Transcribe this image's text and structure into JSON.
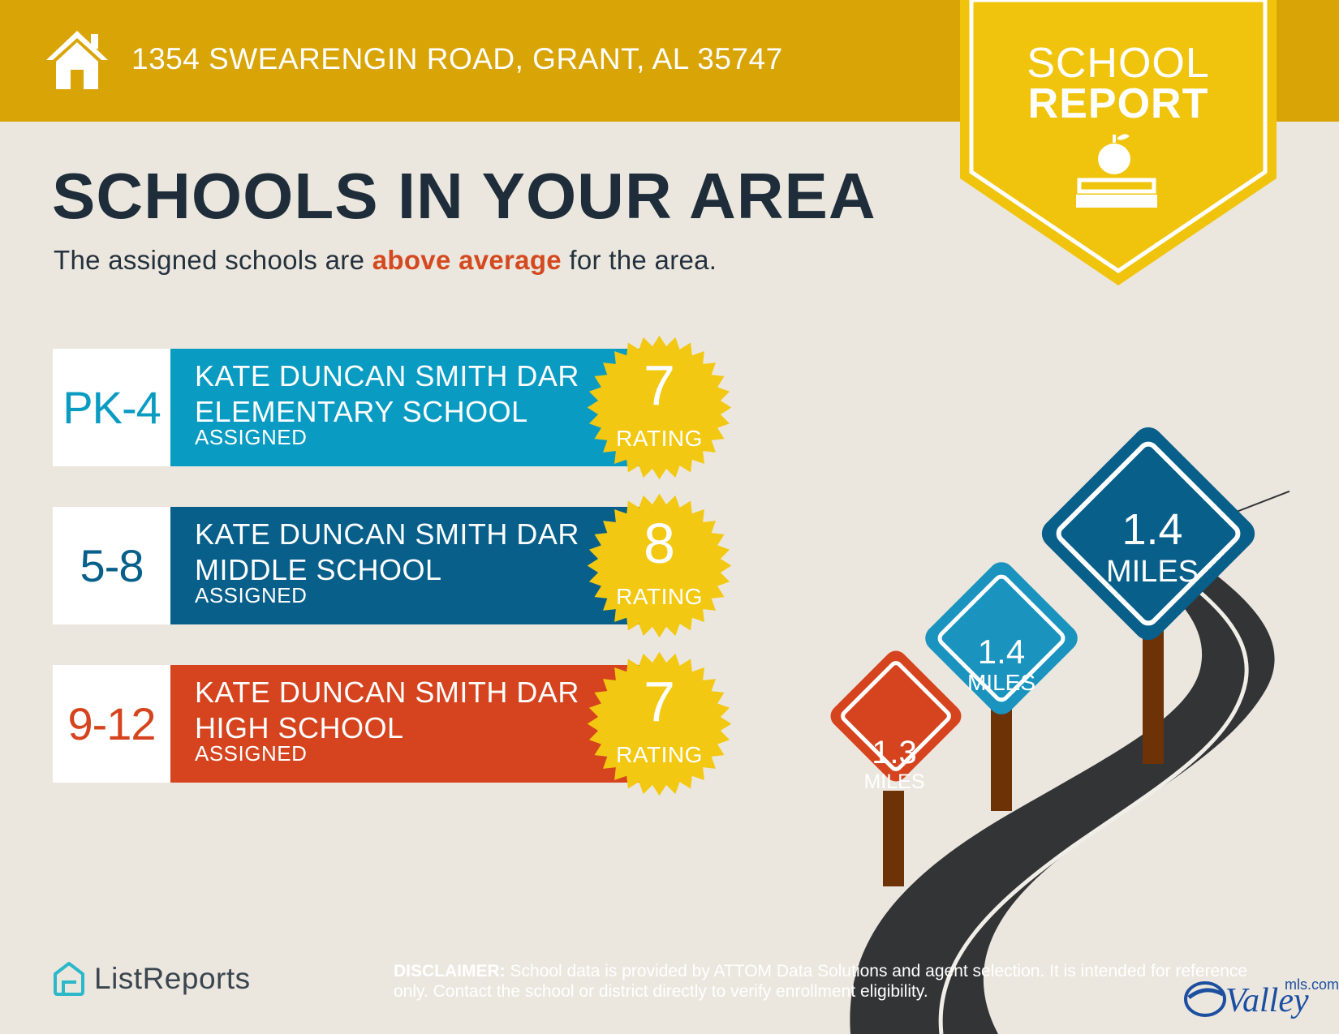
{
  "header": {
    "address": "1354 SWEARENGIN ROAD, GRANT, AL 35747",
    "badge_line1": "SCHOOL",
    "badge_line2": "REPORT"
  },
  "headline": "SCHOOLS IN YOUR AREA",
  "subhead": {
    "before": "The assigned schools are ",
    "highlight": "above average",
    "after": " for the area."
  },
  "schools": [
    {
      "grades": "PK-4",
      "name": "KATE DUNCAN SMITH DAR ELEMENTARY SCHOOL",
      "status": "ASSIGNED",
      "rating": "7",
      "rating_label": "RATING",
      "color": "#0a9bc2"
    },
    {
      "grades": "5-8",
      "name": "KATE DUNCAN SMITH DAR MIDDLE SCHOOL",
      "status": "ASSIGNED",
      "rating": "8",
      "rating_label": "RATING",
      "color": "#075f8a"
    },
    {
      "grades": "9-12",
      "name": "KATE DUNCAN SMITH DAR HIGH SCHOOL",
      "status": "ASSIGNED",
      "rating": "7",
      "rating_label": "RATING",
      "color": "#d5441e"
    }
  ],
  "distances": [
    {
      "value": "1.3",
      "unit": "MILES",
      "color": "#d5441e"
    },
    {
      "value": "1.4",
      "unit": "MILES",
      "color": "#1a94be"
    },
    {
      "value": "1.4",
      "unit": "MILES",
      "color": "#075f8a"
    }
  ],
  "footer": {
    "brand": "ListReports",
    "disclaimer_label": "DISCLAIMER:",
    "disclaimer_text": " School data is provided by ATTOM Data Solutions and agent selection. It is intended for reference only. Contact the school or district directly to verify enrollment eligibility.",
    "partner_logo": "Valley",
    "partner_suffix": "mls.com"
  },
  "colors": {
    "gold": "#d9a406",
    "badge_yellow": "#f0c40d",
    "seal_yellow": "#f2c812",
    "navy_text": "#1f2d3a",
    "accent_red": "#d4491f"
  },
  "icons": [
    "home-icon",
    "apple-books-icon",
    "listreports-logo-icon",
    "valley-logo-icon"
  ]
}
